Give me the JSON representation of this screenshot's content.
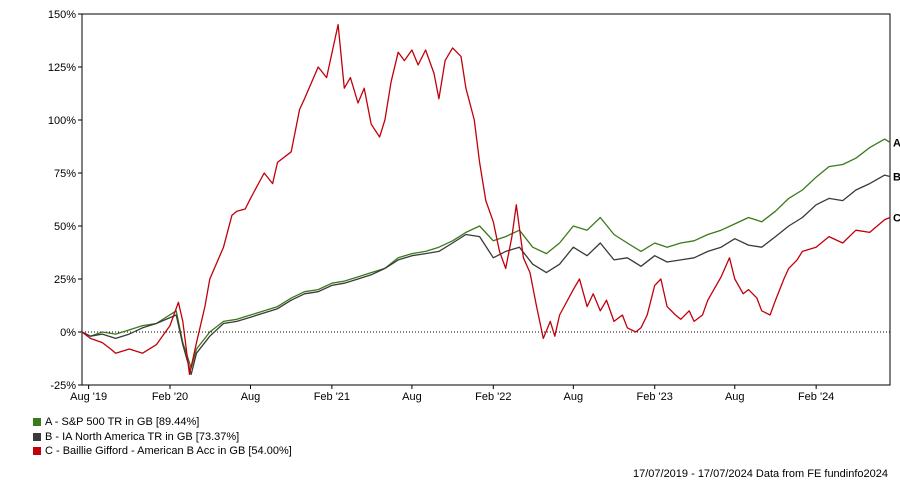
{
  "chart_data": {
    "type": "line",
    "y_tick_labels": [
      "150%",
      "125%",
      "100%",
      "75%",
      "50%",
      "25%",
      "0%",
      "-25%"
    ],
    "y_ticks": [
      150,
      125,
      100,
      75,
      50,
      25,
      0,
      -25
    ],
    "ylim": [
      -25,
      150
    ],
    "x_tick_labels": [
      "Aug '19",
      "Feb '20",
      "Aug",
      "Feb '21",
      "Aug",
      "Feb '22",
      "Aug",
      "Feb '23",
      "Aug",
      "Feb '24"
    ],
    "x_ticks": [
      "2019-08-01",
      "2020-02-01",
      "2020-08-01",
      "2021-02-01",
      "2021-08-01",
      "2022-02-01",
      "2022-08-01",
      "2023-02-01",
      "2023-08-01",
      "2024-02-01"
    ],
    "xlim": [
      "2019-07-17",
      "2024-07-17"
    ],
    "zero_line": "dotted",
    "grid": false,
    "legend_position": "bottom-left",
    "series": [
      {
        "key": "A",
        "name": "A - S&P 500 TR in GB [89.44%]",
        "end_label": "A",
        "color": "#3a7a1a",
        "points": [
          [
            "2019-07-17",
            0
          ],
          [
            "2019-08-05",
            -2
          ],
          [
            "2019-09-01",
            0
          ],
          [
            "2019-10-01",
            -1
          ],
          [
            "2019-11-01",
            1
          ],
          [
            "2019-12-01",
            3
          ],
          [
            "2020-01-01",
            4
          ],
          [
            "2020-02-15",
            10
          ],
          [
            "2020-03-01",
            -5
          ],
          [
            "2020-03-20",
            -17
          ],
          [
            "2020-04-01",
            -8
          ],
          [
            "2020-05-01",
            0
          ],
          [
            "2020-06-01",
            5
          ],
          [
            "2020-07-01",
            6
          ],
          [
            "2020-08-01",
            8
          ],
          [
            "2020-09-01",
            10
          ],
          [
            "2020-10-01",
            12
          ],
          [
            "2020-11-01",
            16
          ],
          [
            "2020-12-01",
            19
          ],
          [
            "2021-01-01",
            20
          ],
          [
            "2021-02-01",
            23
          ],
          [
            "2021-03-01",
            24
          ],
          [
            "2021-04-01",
            26
          ],
          [
            "2021-05-01",
            28
          ],
          [
            "2021-06-01",
            30
          ],
          [
            "2021-07-01",
            35
          ],
          [
            "2021-08-01",
            37
          ],
          [
            "2021-09-01",
            38
          ],
          [
            "2021-10-01",
            40
          ],
          [
            "2021-11-01",
            43
          ],
          [
            "2021-12-01",
            47
          ],
          [
            "2022-01-01",
            50
          ],
          [
            "2022-02-01",
            43
          ],
          [
            "2022-03-01",
            45
          ],
          [
            "2022-04-01",
            48
          ],
          [
            "2022-05-01",
            40
          ],
          [
            "2022-06-01",
            37
          ],
          [
            "2022-07-01",
            42
          ],
          [
            "2022-08-01",
            50
          ],
          [
            "2022-09-01",
            48
          ],
          [
            "2022-10-01",
            54
          ],
          [
            "2022-11-01",
            46
          ],
          [
            "2022-12-01",
            42
          ],
          [
            "2023-01-01",
            38
          ],
          [
            "2023-02-01",
            42
          ],
          [
            "2023-03-01",
            40
          ],
          [
            "2023-04-01",
            42
          ],
          [
            "2023-05-01",
            43
          ],
          [
            "2023-06-01",
            46
          ],
          [
            "2023-07-01",
            48
          ],
          [
            "2023-08-01",
            51
          ],
          [
            "2023-09-01",
            54
          ],
          [
            "2023-10-01",
            52
          ],
          [
            "2023-11-01",
            57
          ],
          [
            "2023-12-01",
            63
          ],
          [
            "2024-01-01",
            67
          ],
          [
            "2024-02-01",
            73
          ],
          [
            "2024-03-01",
            78
          ],
          [
            "2024-04-01",
            79
          ],
          [
            "2024-05-01",
            82
          ],
          [
            "2024-06-01",
            87
          ],
          [
            "2024-07-05",
            91
          ],
          [
            "2024-07-17",
            89.44
          ]
        ]
      },
      {
        "key": "B",
        "name": "B - IA North America TR in GB [73.37%]",
        "end_label": "B",
        "color": "#3a3a3a",
        "points": [
          [
            "2019-07-17",
            0
          ],
          [
            "2019-08-05",
            -2
          ],
          [
            "2019-09-01",
            -1
          ],
          [
            "2019-10-01",
            -3
          ],
          [
            "2019-11-01",
            -1
          ],
          [
            "2019-12-01",
            2
          ],
          [
            "2020-01-01",
            4
          ],
          [
            "2020-02-15",
            8
          ],
          [
            "2020-03-01",
            -6
          ],
          [
            "2020-03-20",
            -20
          ],
          [
            "2020-04-01",
            -10
          ],
          [
            "2020-05-01",
            -2
          ],
          [
            "2020-06-01",
            4
          ],
          [
            "2020-07-01",
            5
          ],
          [
            "2020-08-01",
            7
          ],
          [
            "2020-09-01",
            9
          ],
          [
            "2020-10-01",
            11
          ],
          [
            "2020-11-01",
            15
          ],
          [
            "2020-12-01",
            18
          ],
          [
            "2021-01-01",
            19
          ],
          [
            "2021-02-01",
            22
          ],
          [
            "2021-03-01",
            23
          ],
          [
            "2021-04-01",
            25
          ],
          [
            "2021-05-01",
            27
          ],
          [
            "2021-06-01",
            30
          ],
          [
            "2021-07-01",
            34
          ],
          [
            "2021-08-01",
            36
          ],
          [
            "2021-09-01",
            37
          ],
          [
            "2021-10-01",
            38
          ],
          [
            "2021-11-01",
            42
          ],
          [
            "2021-12-01",
            46
          ],
          [
            "2022-01-01",
            45
          ],
          [
            "2022-02-01",
            35
          ],
          [
            "2022-03-01",
            38
          ],
          [
            "2022-04-01",
            40
          ],
          [
            "2022-05-01",
            32
          ],
          [
            "2022-06-01",
            28
          ],
          [
            "2022-07-01",
            32
          ],
          [
            "2022-08-01",
            40
          ],
          [
            "2022-09-01",
            36
          ],
          [
            "2022-10-01",
            42
          ],
          [
            "2022-11-01",
            34
          ],
          [
            "2022-12-01",
            35
          ],
          [
            "2023-01-01",
            31
          ],
          [
            "2023-02-01",
            36
          ],
          [
            "2023-03-01",
            33
          ],
          [
            "2023-04-01",
            34
          ],
          [
            "2023-05-01",
            35
          ],
          [
            "2023-06-01",
            38
          ],
          [
            "2023-07-01",
            40
          ],
          [
            "2023-08-01",
            44
          ],
          [
            "2023-09-01",
            41
          ],
          [
            "2023-10-01",
            40
          ],
          [
            "2023-11-01",
            45
          ],
          [
            "2023-12-01",
            50
          ],
          [
            "2024-01-01",
            54
          ],
          [
            "2024-02-01",
            60
          ],
          [
            "2024-03-01",
            63
          ],
          [
            "2024-04-01",
            62
          ],
          [
            "2024-05-01",
            67
          ],
          [
            "2024-06-01",
            70
          ],
          [
            "2024-07-05",
            74
          ],
          [
            "2024-07-17",
            73.37
          ]
        ]
      },
      {
        "key": "C",
        "name": "C - Baillie Gifford - American B Acc in GB [54.00%]",
        "end_label": "C",
        "color": "#c0000b",
        "points": [
          [
            "2019-07-17",
            0
          ],
          [
            "2019-08-05",
            -3
          ],
          [
            "2019-09-01",
            -5
          ],
          [
            "2019-09-20",
            -8
          ],
          [
            "2019-10-01",
            -10
          ],
          [
            "2019-11-01",
            -8
          ],
          [
            "2019-12-01",
            -10
          ],
          [
            "2020-01-01",
            -6
          ],
          [
            "2020-02-01",
            3
          ],
          [
            "2020-02-20",
            14
          ],
          [
            "2020-03-01",
            5
          ],
          [
            "2020-03-16",
            -20
          ],
          [
            "2020-04-01",
            -5
          ],
          [
            "2020-04-20",
            12
          ],
          [
            "2020-05-01",
            25
          ],
          [
            "2020-06-01",
            40
          ],
          [
            "2020-06-20",
            55
          ],
          [
            "2020-07-01",
            57
          ],
          [
            "2020-07-20",
            58
          ],
          [
            "2020-08-01",
            63
          ],
          [
            "2020-09-01",
            75
          ],
          [
            "2020-09-20",
            70
          ],
          [
            "2020-10-01",
            80
          ],
          [
            "2020-11-01",
            85
          ],
          [
            "2020-11-20",
            105
          ],
          [
            "2020-12-01",
            110
          ],
          [
            "2021-01-01",
            125
          ],
          [
            "2021-01-20",
            120
          ],
          [
            "2021-02-15",
            145
          ],
          [
            "2021-03-01",
            115
          ],
          [
            "2021-03-15",
            120
          ],
          [
            "2021-04-01",
            108
          ],
          [
            "2021-04-15",
            115
          ],
          [
            "2021-05-01",
            98
          ],
          [
            "2021-05-20",
            92
          ],
          [
            "2021-06-01",
            100
          ],
          [
            "2021-06-15",
            118
          ],
          [
            "2021-07-01",
            132
          ],
          [
            "2021-07-15",
            128
          ],
          [
            "2021-08-01",
            133
          ],
          [
            "2021-08-15",
            126
          ],
          [
            "2021-09-01",
            133
          ],
          [
            "2021-09-20",
            122
          ],
          [
            "2021-10-01",
            110
          ],
          [
            "2021-10-15",
            128
          ],
          [
            "2021-11-01",
            134
          ],
          [
            "2021-11-20",
            130
          ],
          [
            "2021-12-01",
            115
          ],
          [
            "2021-12-20",
            100
          ],
          [
            "2022-01-01",
            80
          ],
          [
            "2022-01-15",
            62
          ],
          [
            "2022-02-01",
            52
          ],
          [
            "2022-02-15",
            38
          ],
          [
            "2022-03-01",
            30
          ],
          [
            "2022-03-15",
            45
          ],
          [
            "2022-03-25",
            60
          ],
          [
            "2022-04-10",
            35
          ],
          [
            "2022-04-25",
            28
          ],
          [
            "2022-05-10",
            12
          ],
          [
            "2022-05-25",
            -3
          ],
          [
            "2022-06-10",
            5
          ],
          [
            "2022-06-20",
            -2
          ],
          [
            "2022-07-01",
            8
          ],
          [
            "2022-08-01",
            20
          ],
          [
            "2022-08-15",
            25
          ],
          [
            "2022-09-01",
            12
          ],
          [
            "2022-09-15",
            18
          ],
          [
            "2022-10-01",
            10
          ],
          [
            "2022-10-15",
            15
          ],
          [
            "2022-11-01",
            5
          ],
          [
            "2022-11-20",
            8
          ],
          [
            "2022-12-01",
            2
          ],
          [
            "2022-12-20",
            0
          ],
          [
            "2023-01-01",
            2
          ],
          [
            "2023-01-15",
            8
          ],
          [
            "2023-02-01",
            22
          ],
          [
            "2023-02-15",
            25
          ],
          [
            "2023-03-01",
            12
          ],
          [
            "2023-03-20",
            8
          ],
          [
            "2023-04-01",
            6
          ],
          [
            "2023-04-20",
            10
          ],
          [
            "2023-05-01",
            5
          ],
          [
            "2023-05-20",
            8
          ],
          [
            "2023-06-01",
            15
          ],
          [
            "2023-06-20",
            22
          ],
          [
            "2023-07-01",
            26
          ],
          [
            "2023-07-20",
            35
          ],
          [
            "2023-08-01",
            25
          ],
          [
            "2023-08-20",
            18
          ],
          [
            "2023-09-01",
            20
          ],
          [
            "2023-09-20",
            16
          ],
          [
            "2023-10-01",
            10
          ],
          [
            "2023-10-20",
            8
          ],
          [
            "2023-11-01",
            15
          ],
          [
            "2023-11-20",
            25
          ],
          [
            "2023-12-01",
            30
          ],
          [
            "2023-12-20",
            34
          ],
          [
            "2024-01-01",
            38
          ],
          [
            "2024-02-01",
            40
          ],
          [
            "2024-03-01",
            45
          ],
          [
            "2024-04-01",
            42
          ],
          [
            "2024-05-01",
            48
          ],
          [
            "2024-06-01",
            47
          ],
          [
            "2024-07-05",
            53
          ],
          [
            "2024-07-17",
            54
          ]
        ]
      }
    ]
  },
  "legend": {
    "items": [
      {
        "label": "A - S&P 500 TR in GB [89.44%]",
        "color": "#3a7a1a"
      },
      {
        "label": "B - IA North America TR in GB [73.37%]",
        "color": "#3a3a3a"
      },
      {
        "label": "C - Baillie Gifford - American B Acc in GB [54.00%]",
        "color": "#c0000b"
      }
    ]
  },
  "footer": {
    "text": "17/07/2019 - 17/07/2024 Data from FE fundinfo2024"
  }
}
